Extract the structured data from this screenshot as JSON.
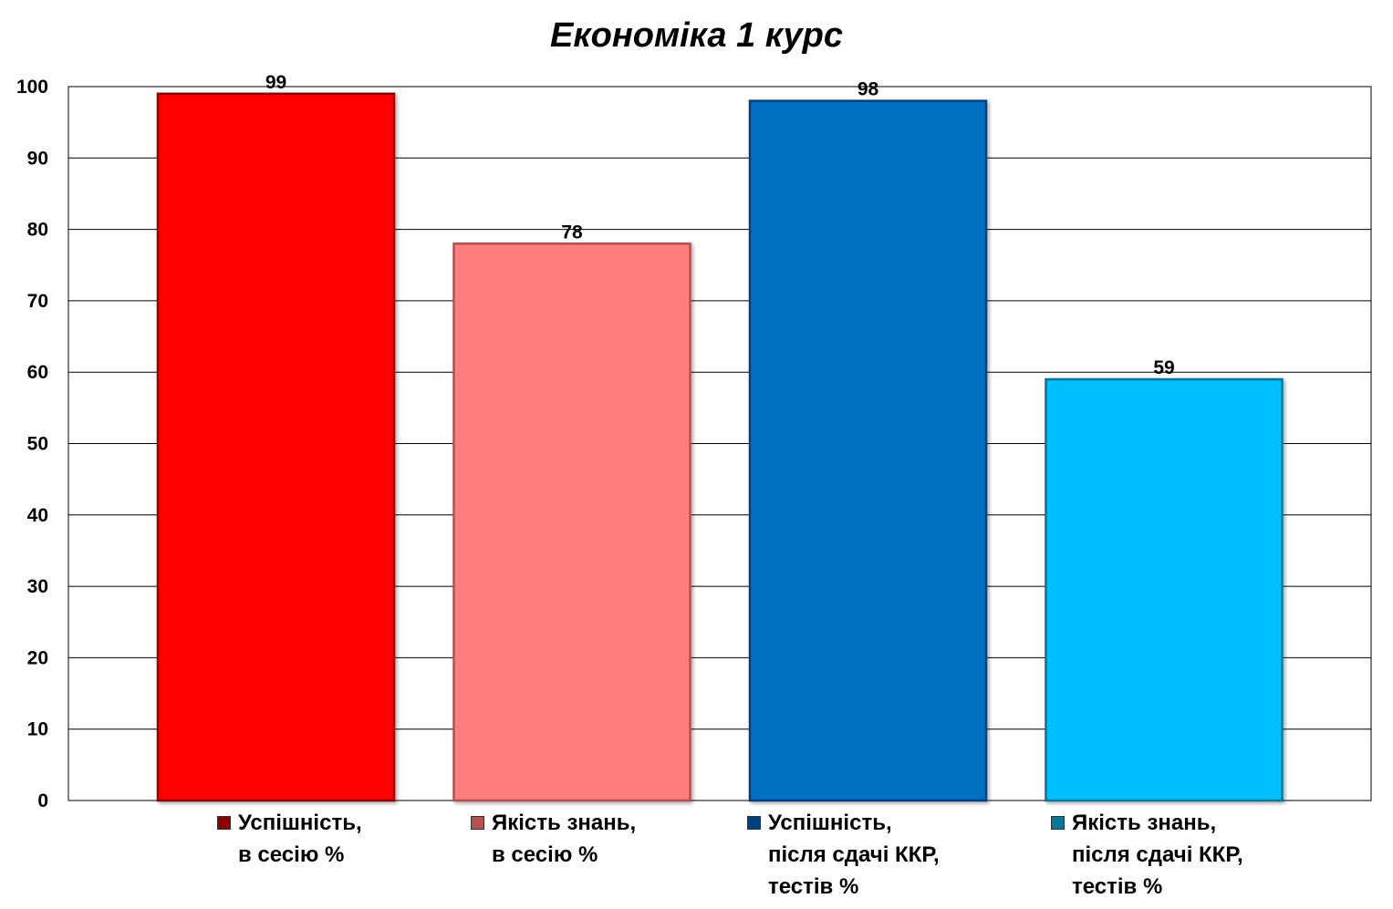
{
  "chart_data": {
    "type": "bar",
    "title": "Економіка 1 курс",
    "categories": [
      "Успішність,\nв сесію %",
      "Якість знань,\nв сесію %",
      "Успішність,\nпісля сдачі ККР,\nтестів %",
      "Якість знань,\nпісля сдачі ККР,\nтестів %"
    ],
    "values": [
      99,
      78,
      98,
      59
    ],
    "colors": [
      "#ff0000",
      "#ff7f7f",
      "#0070c0",
      "#00bfff"
    ],
    "swatch_colors": [
      "#8b0000",
      "#b85050",
      "#004080",
      "#00789a"
    ],
    "ylim": [
      0,
      100
    ],
    "yticks": [
      0,
      10,
      20,
      30,
      40,
      50,
      60,
      70,
      80,
      90,
      100
    ],
    "grid": true,
    "legend": "bottom",
    "xlabel": "",
    "ylabel": ""
  }
}
